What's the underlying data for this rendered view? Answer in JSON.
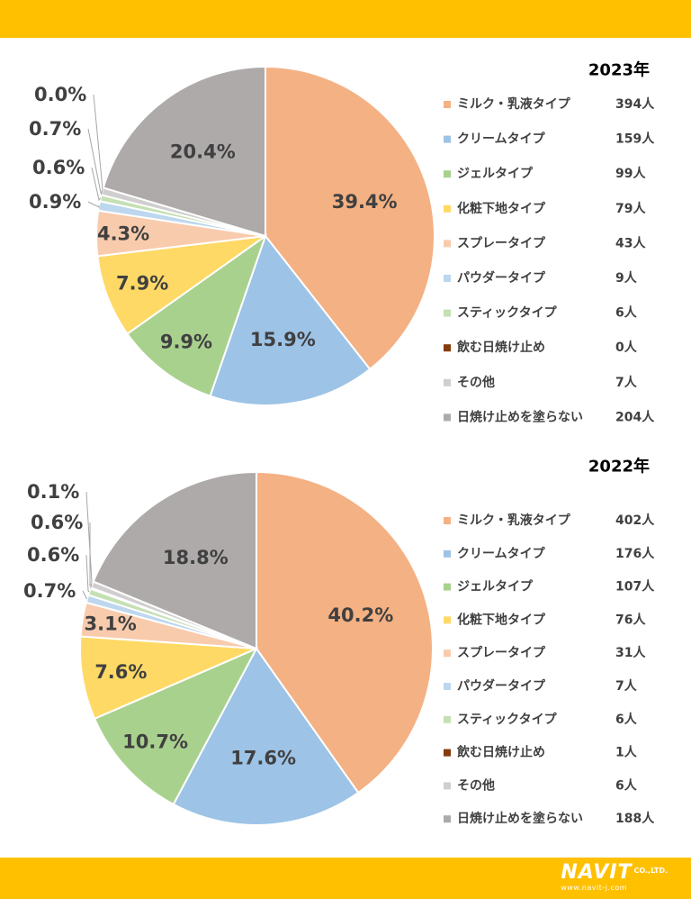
{
  "colors": {
    "band": "#FFC000",
    "label_text": "#404040",
    "legend_text": "#404040",
    "slice_border": "#ffffff",
    "palette": [
      "#F4B183",
      "#9DC3E6",
      "#A9D18E",
      "#FFD966",
      "#F8CBAD",
      "#BDD7EE",
      "#C5E0B4",
      "#843C0C",
      "#D0CECE",
      "#AEAAAA"
    ]
  },
  "chart_data": [
    {
      "type": "pie",
      "title": "2023年",
      "categories": [
        "ミルク・乳液タイプ",
        "クリームタイプ",
        "ジェルタイプ",
        "化粧下地タイプ",
        "スプレータイプ",
        "パウダータイプ",
        "スティックタイプ",
        "飲む日焼け止め",
        "その他",
        "日焼け止めを塗らない"
      ],
      "values": [
        394,
        159,
        99,
        79,
        43,
        9,
        6,
        0,
        7,
        204
      ],
      "value_labels": [
        "394人",
        "159人",
        "99人",
        "79人",
        "43人",
        "9人",
        "6人",
        "0人",
        "7人",
        "204人"
      ],
      "percent_labels": [
        "39.4%",
        "15.9%",
        "9.9%",
        "7.9%",
        "4.3%",
        "0.9%",
        "0.6%",
        "0.0%",
        "0.7%",
        "20.4%"
      ],
      "legend_position": "right"
    },
    {
      "type": "pie",
      "title": "2022年",
      "categories": [
        "ミルク・乳液タイプ",
        "クリームタイプ",
        "ジェルタイプ",
        "化粧下地タイプ",
        "スプレータイプ",
        "パウダータイプ",
        "スティックタイプ",
        "飲む日焼け止め",
        "その他",
        "日焼け止めを塗らない"
      ],
      "values": [
        402,
        176,
        107,
        76,
        31,
        7,
        6,
        1,
        6,
        188
      ],
      "value_labels": [
        "402人",
        "176人",
        "107人",
        "76人",
        "31人",
        "7人",
        "6人",
        "1人",
        "6人",
        "188人"
      ],
      "percent_labels": [
        "40.2%",
        "17.6%",
        "10.7%",
        "7.6%",
        "3.1%",
        "0.7%",
        "0.6%",
        "0.1%",
        "0.6%",
        "18.8%"
      ],
      "legend_position": "right"
    }
  ],
  "branding": {
    "logo_text": "NAVIT",
    "logo_suffix": "CO.,LTD.",
    "logo_url": "www.navit-j.com"
  }
}
